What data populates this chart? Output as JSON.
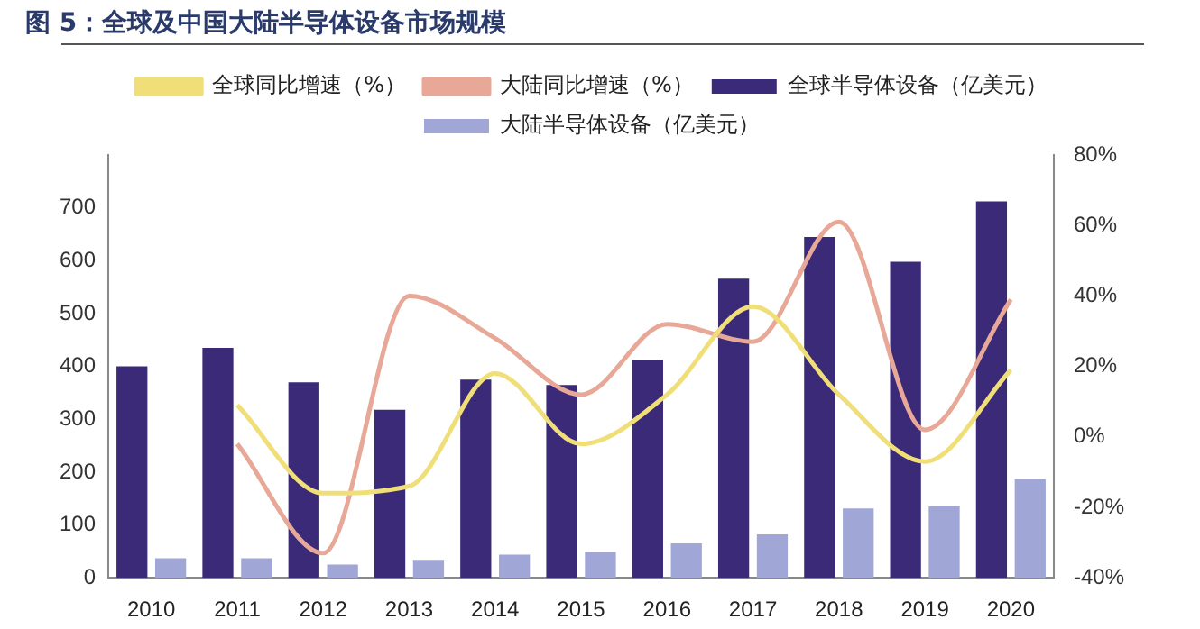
{
  "chart_data": {
    "type": "bar",
    "title": "图 5：全球及中国大陆半导体设备市场规模",
    "categories": [
      "2010",
      "2011",
      "2012",
      "2013",
      "2014",
      "2015",
      "2016",
      "2017",
      "2018",
      "2019",
      "2020"
    ],
    "series": [
      {
        "name": "全球半导体设备（亿美元）",
        "color": "#3a2a78",
        "values": [
          400,
          435,
          370,
          318,
          375,
          365,
          412,
          566,
          645,
          598,
          712
        ]
      },
      {
        "name": "大陆半导体设备（亿美元）",
        "color": "#a0a6d6",
        "values": [
          37,
          37,
          25,
          34,
          44,
          49,
          65,
          82,
          131,
          135,
          187
        ]
      },
      {
        "name": "全球同比增速（%）",
        "type": "line",
        "axis": "y2",
        "color": "#f0df78",
        "values": [
          null,
          9,
          -16,
          -14,
          18,
          -2,
          12,
          37,
          12,
          -7,
          19
        ]
      },
      {
        "name": "大陆同比增速（%）",
        "type": "line",
        "axis": "y2",
        "color": "#e8a898",
        "values": [
          null,
          -2,
          -33,
          40,
          28,
          12,
          32,
          27,
          61,
          2,
          39
        ]
      }
    ],
    "ylim": [
      0,
      800
    ],
    "yticks": [
      0,
      100,
      200,
      300,
      400,
      500,
      600,
      700
    ],
    "y2lim": [
      -40,
      80
    ],
    "y2ticks": [
      {
        "value": -40,
        "label": "-40%"
      },
      {
        "value": -20,
        "label": "-20%"
      },
      {
        "value": 0,
        "label": "0%"
      },
      {
        "value": 20,
        "label": "20%"
      },
      {
        "value": 40,
        "label": "40%"
      },
      {
        "value": 60,
        "label": "60%"
      },
      {
        "value": 80,
        "label": "80%"
      }
    ],
    "grid": false,
    "legend": "top",
    "marker": "none"
  }
}
